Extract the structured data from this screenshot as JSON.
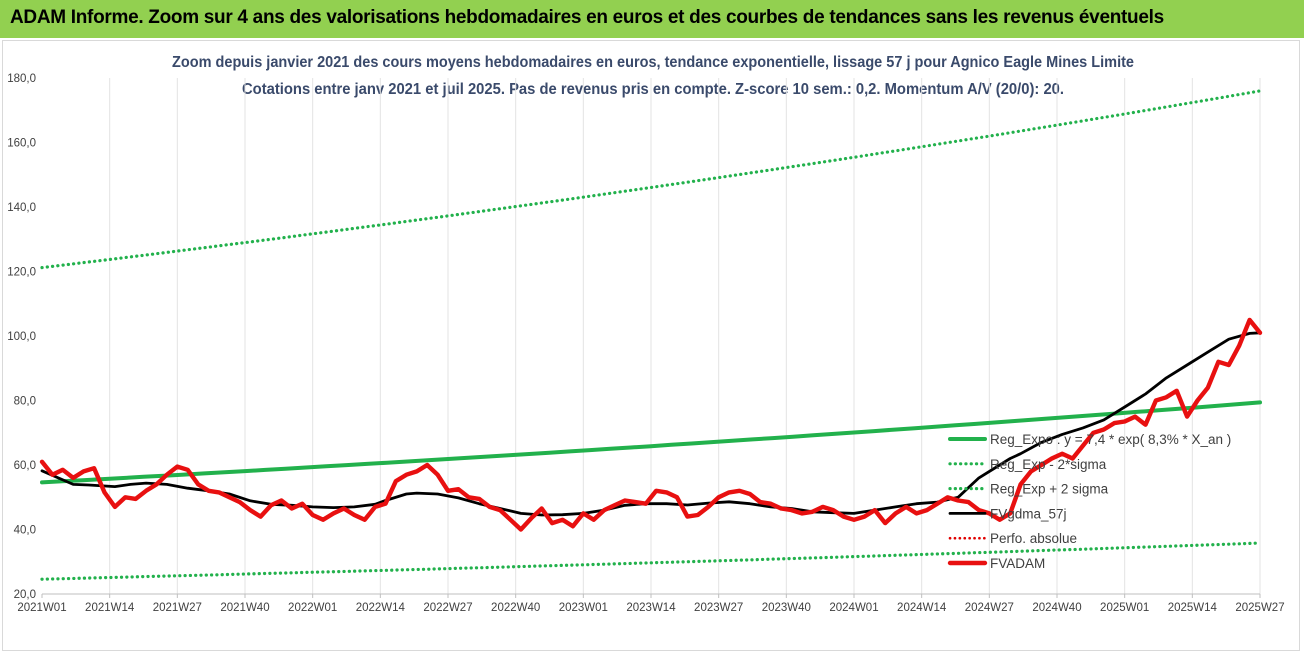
{
  "banner": {
    "title": "ADAM Informe. Zoom sur 4 ans des valorisations hebdomadaires en euros et des courbes de tendances sans les revenus éventuels"
  },
  "chart_data": {
    "type": "line",
    "title": "Zoom depuis janvier 2021 des cours moyens hebdomadaires en euros, tendance exponentielle, lissage 57 j pour Agnico Eagle Mines Limite",
    "subtitle": "Cotations entre janv 2021 et juil 2025. Pas de revenus pris en compte. Z-score 10 sem.: 0,2. Momentum A/V (20/0): 20.",
    "xlabel": "",
    "ylabel": "",
    "ylim": [
      20,
      180
    ],
    "yticks": [
      "20,0",
      "40,0",
      "60,0",
      "80,0",
      "100,0",
      "120,0",
      "140,0",
      "160,0",
      "180,0"
    ],
    "x_ticks": [
      "2021W01",
      "2021W14",
      "2021W27",
      "2021W40",
      "2022W01",
      "2022W14",
      "2022W27",
      "2022W40",
      "2023W01",
      "2023W14",
      "2023W27",
      "2023W40",
      "2024W01",
      "2024W14",
      "2024W27",
      "2024W40",
      "2025W01",
      "2025W14",
      "2025W27"
    ],
    "x_range_weeks": [
      0,
      234
    ],
    "grid": "vertical",
    "legend_position": "right",
    "colors": {
      "banner": "#92d050",
      "title_text": "#3a4a6b",
      "reg_expo": "#22b14c",
      "bands": "#22b14c",
      "fvgdma": "#000000",
      "perfo": "#e00000",
      "fvadam": "#e81010"
    },
    "series": [
      {
        "name": "Reg_Expo : y = 7,4 * exp( 8,3% * X_an )",
        "style": "solid-thick",
        "x": [
          0,
          234
        ],
        "values": [
          54.6,
          79.4
        ]
      },
      {
        "name": "Reg_Exp - 2*sigma",
        "style": "dotted",
        "x": [
          0,
          234
        ],
        "values": [
          24.6,
          35.8
        ]
      },
      {
        "name": "Reg_Exp + 2 sigma",
        "style": "dotted",
        "x": [
          0,
          234
        ],
        "values": [
          121.2,
          176.0
        ]
      },
      {
        "name": "FVgdma_57j",
        "style": "solid",
        "x": [
          0,
          6,
          9,
          14,
          17,
          20,
          24,
          28,
          32,
          36,
          40,
          44,
          48,
          52,
          56,
          60,
          64,
          66,
          70,
          72,
          76,
          80,
          84,
          88,
          92,
          96,
          100,
          104,
          108,
          112,
          116,
          120,
          124,
          128,
          132,
          136,
          140,
          144,
          148,
          152,
          156,
          160,
          164,
          168,
          172,
          176,
          180,
          184,
          186,
          188,
          192,
          196,
          200,
          204,
          208,
          212,
          216,
          220,
          224,
          228,
          232,
          234
        ],
        "values": [
          58.2,
          54.0,
          53.8,
          53.3,
          54.0,
          54.4,
          54.0,
          52.8,
          52.0,
          51.0,
          48.9,
          47.8,
          47.5,
          47.0,
          46.8,
          47.0,
          47.8,
          49.0,
          51.0,
          51.3,
          51.0,
          49.8,
          48.0,
          46.5,
          45.0,
          44.5,
          44.6,
          45.0,
          46.0,
          47.5,
          48.0,
          48.0,
          47.6,
          48.2,
          48.6,
          48.0,
          47.0,
          46.5,
          45.5,
          45.2,
          45.0,
          46.0,
          47.0,
          48.0,
          48.5,
          50.0,
          56.0,
          60.0,
          62.0,
          63.5,
          67.0,
          69.5,
          71.5,
          74.0,
          78.0,
          82.0,
          87.0,
          91.0,
          95.0,
          99.0,
          100.8,
          101.0
        ]
      },
      {
        "name": "Perfo. absolue",
        "style": "dotted",
        "x": [],
        "values": []
      },
      {
        "name": "FVADAM",
        "style": "solid-thick",
        "x": [
          0,
          2,
          4,
          6,
          8,
          10,
          12,
          14,
          16,
          18,
          20,
          22,
          24,
          26,
          28,
          30,
          32,
          34,
          36,
          38,
          40,
          42,
          44,
          46,
          48,
          50,
          52,
          54,
          56,
          58,
          60,
          62,
          64,
          66,
          68,
          70,
          72,
          74,
          76,
          78,
          80,
          82,
          84,
          86,
          88,
          90,
          92,
          94,
          96,
          98,
          100,
          102,
          104,
          106,
          108,
          110,
          112,
          114,
          116,
          118,
          120,
          122,
          124,
          126,
          128,
          130,
          132,
          134,
          136,
          138,
          140,
          142,
          144,
          146,
          148,
          150,
          152,
          154,
          156,
          158,
          160,
          162,
          164,
          166,
          168,
          170,
          172,
          174,
          176,
          178,
          180,
          182,
          184,
          186,
          188,
          190,
          192,
          194,
          196,
          198,
          200,
          202,
          204,
          206,
          208,
          210,
          212,
          214,
          216,
          218,
          220,
          222,
          224,
          226,
          228,
          230,
          232,
          234
        ],
        "values": [
          61.0,
          57.0,
          58.5,
          56.0,
          58.0,
          59.0,
          51.5,
          47.0,
          50.0,
          49.5,
          52.0,
          54.0,
          57.0,
          59.5,
          58.5,
          54.0,
          52.0,
          51.5,
          50.0,
          48.5,
          46.0,
          44.0,
          47.5,
          49.0,
          46.5,
          48.0,
          44.5,
          43.0,
          45.0,
          46.5,
          44.5,
          43.0,
          47.0,
          48.0,
          55.0,
          57.0,
          58.0,
          60.0,
          57.0,
          52.0,
          52.5,
          50.0,
          49.5,
          47.0,
          46.0,
          43.0,
          40.0,
          43.5,
          46.5,
          42.0,
          43.0,
          41.0,
          45.0,
          43.0,
          46.0,
          47.5,
          49.0,
          48.5,
          48.0,
          52.0,
          51.5,
          50.0,
          44.0,
          44.5,
          47.0,
          50.0,
          51.5,
          52.0,
          51.0,
          48.5,
          48.0,
          46.5,
          46.0,
          45.0,
          45.5,
          47.0,
          46.0,
          44.0,
          43.0,
          44.0,
          46.0,
          42.0,
          45.0,
          47.0,
          45.0,
          46.0,
          48.0,
          50.0,
          49.0,
          48.5,
          46.0,
          45.0,
          43.0,
          45.0,
          54.0,
          58.0,
          60.0,
          62.0,
          63.5,
          62.0,
          66.0,
          70.0,
          71.0,
          73.0,
          73.5,
          75.0,
          72.5,
          80.0,
          81.0,
          83.0,
          75.0,
          80.0,
          84.0,
          92.0,
          91.0,
          97.0,
          105.0,
          101.0
        ]
      }
    ]
  }
}
